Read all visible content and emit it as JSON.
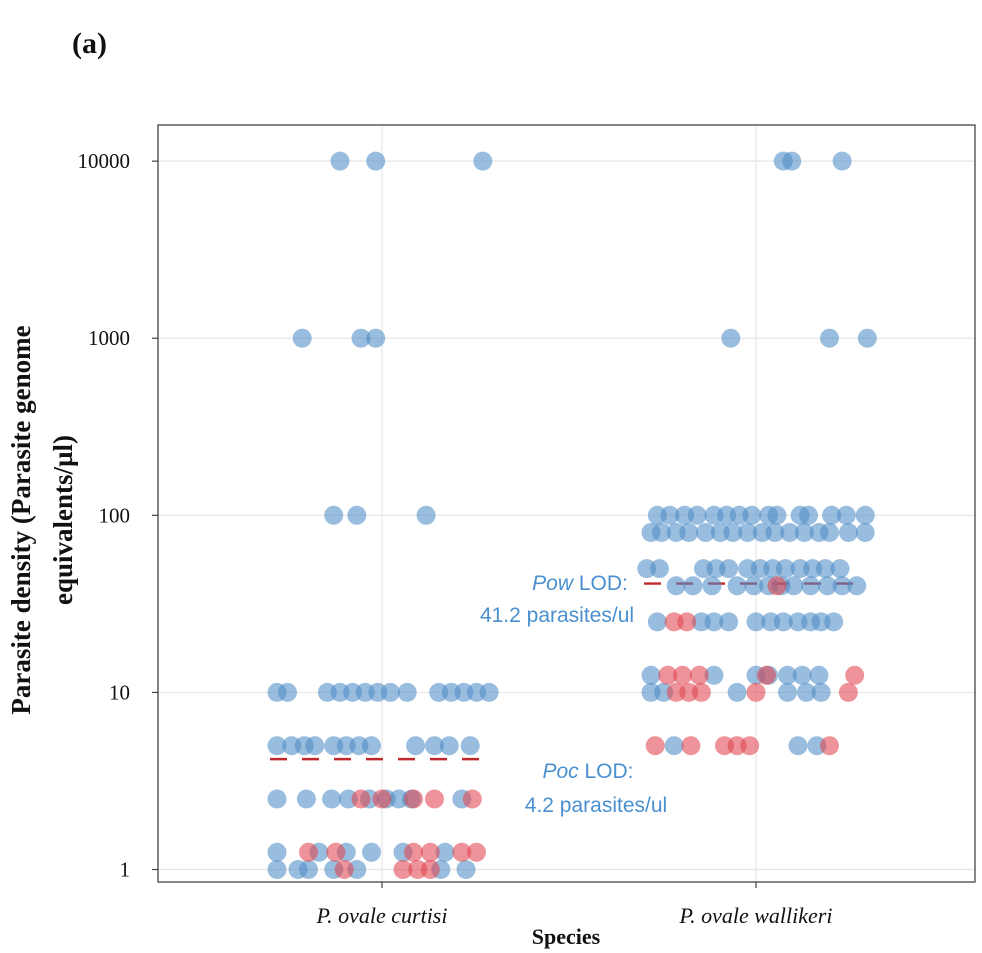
{
  "panel_label": "(a)",
  "chart_data": {
    "type": "scatter",
    "title": "",
    "xlabel": "Species",
    "ylabel_line1": "Parasite density  (Parasite genome",
    "ylabel_line2": "equivalents/µl)",
    "y_scale": "log10",
    "ylim": [
      0.85,
      16000
    ],
    "y_ticks": [
      1,
      10,
      100,
      1000,
      10000
    ],
    "y_tick_labels": [
      "1",
      "10",
      "100",
      "1000",
      "10000"
    ],
    "categories": [
      "P. ovale curtisi",
      "P. ovale wallikeri"
    ],
    "grid": true,
    "colors": {
      "blue": "#4f8ec6",
      "red": "#e0454f",
      "lod_line": "#c0282c",
      "annotation": "#4a90d0"
    },
    "series": [
      {
        "color": "blue",
        "points": [
          {
            "category": 0,
            "jitter": -0.2,
            "y": 10000
          },
          {
            "category": 0,
            "jitter": -0.03,
            "y": 10000
          },
          {
            "category": 0,
            "jitter": 0.48,
            "y": 10000
          },
          {
            "category": 0,
            "jitter": -0.38,
            "y": 1000
          },
          {
            "category": 0,
            "jitter": -0.1,
            "y": 1000
          },
          {
            "category": 0,
            "jitter": -0.03,
            "y": 1000
          },
          {
            "category": 0,
            "jitter": -0.23,
            "y": 100
          },
          {
            "category": 0,
            "jitter": -0.12,
            "y": 100
          },
          {
            "category": 0,
            "jitter": 0.21,
            "y": 100
          },
          {
            "category": 0,
            "jitter": -0.5,
            "y": 10
          },
          {
            "category": 0,
            "jitter": -0.45,
            "y": 10
          },
          {
            "category": 0,
            "jitter": -0.26,
            "y": 10
          },
          {
            "category": 0,
            "jitter": -0.2,
            "y": 10
          },
          {
            "category": 0,
            "jitter": -0.14,
            "y": 10
          },
          {
            "category": 0,
            "jitter": -0.08,
            "y": 10
          },
          {
            "category": 0,
            "jitter": -0.02,
            "y": 10
          },
          {
            "category": 0,
            "jitter": 0.04,
            "y": 10
          },
          {
            "category": 0,
            "jitter": 0.12,
            "y": 10
          },
          {
            "category": 0,
            "jitter": 0.27,
            "y": 10
          },
          {
            "category": 0,
            "jitter": 0.33,
            "y": 10
          },
          {
            "category": 0,
            "jitter": 0.39,
            "y": 10
          },
          {
            "category": 0,
            "jitter": 0.45,
            "y": 10
          },
          {
            "category": 0,
            "jitter": 0.51,
            "y": 10
          },
          {
            "category": 0,
            "jitter": -0.5,
            "y": 5
          },
          {
            "category": 0,
            "jitter": -0.43,
            "y": 5
          },
          {
            "category": 0,
            "jitter": -0.37,
            "y": 5
          },
          {
            "category": 0,
            "jitter": -0.32,
            "y": 5
          },
          {
            "category": 0,
            "jitter": -0.23,
            "y": 5
          },
          {
            "category": 0,
            "jitter": -0.17,
            "y": 5
          },
          {
            "category": 0,
            "jitter": -0.11,
            "y": 5
          },
          {
            "category": 0,
            "jitter": -0.05,
            "y": 5
          },
          {
            "category": 0,
            "jitter": 0.16,
            "y": 5
          },
          {
            "category": 0,
            "jitter": 0.25,
            "y": 5
          },
          {
            "category": 0,
            "jitter": 0.32,
            "y": 5
          },
          {
            "category": 0,
            "jitter": 0.42,
            "y": 5
          },
          {
            "category": 0,
            "jitter": -0.5,
            "y": 2.5
          },
          {
            "category": 0,
            "jitter": -0.36,
            "y": 2.5
          },
          {
            "category": 0,
            "jitter": -0.24,
            "y": 2.5
          },
          {
            "category": 0,
            "jitter": -0.16,
            "y": 2.5
          },
          {
            "category": 0,
            "jitter": -0.06,
            "y": 2.5
          },
          {
            "category": 0,
            "jitter": 0.02,
            "y": 2.5
          },
          {
            "category": 0,
            "jitter": 0.08,
            "y": 2.5
          },
          {
            "category": 0,
            "jitter": 0.14,
            "y": 2.5
          },
          {
            "category": 0,
            "jitter": 0.38,
            "y": 2.5
          },
          {
            "category": 0,
            "jitter": -0.5,
            "y": 1.25
          },
          {
            "category": 0,
            "jitter": -0.3,
            "y": 1.25
          },
          {
            "category": 0,
            "jitter": -0.17,
            "y": 1.25
          },
          {
            "category": 0,
            "jitter": -0.05,
            "y": 1.25
          },
          {
            "category": 0,
            "jitter": 0.1,
            "y": 1.25
          },
          {
            "category": 0,
            "jitter": 0.3,
            "y": 1.25
          },
          {
            "category": 0,
            "jitter": -0.5,
            "y": 1
          },
          {
            "category": 0,
            "jitter": -0.4,
            "y": 1
          },
          {
            "category": 0,
            "jitter": -0.35,
            "y": 1
          },
          {
            "category": 0,
            "jitter": -0.23,
            "y": 1
          },
          {
            "category": 0,
            "jitter": -0.12,
            "y": 1
          },
          {
            "category": 0,
            "jitter": 0.28,
            "y": 1
          },
          {
            "category": 0,
            "jitter": 0.4,
            "y": 1
          },
          {
            "category": 1,
            "jitter": 0.13,
            "y": 10000
          },
          {
            "category": 1,
            "jitter": 0.17,
            "y": 10000
          },
          {
            "category": 1,
            "jitter": 0.41,
            "y": 10000
          },
          {
            "category": 1,
            "jitter": -0.12,
            "y": 1000
          },
          {
            "category": 1,
            "jitter": 0.35,
            "y": 1000
          },
          {
            "category": 1,
            "jitter": 0.53,
            "y": 1000
          },
          {
            "category": 1,
            "jitter": -0.47,
            "y": 100
          },
          {
            "category": 1,
            "jitter": -0.41,
            "y": 100
          },
          {
            "category": 1,
            "jitter": -0.34,
            "y": 100
          },
          {
            "category": 1,
            "jitter": -0.28,
            "y": 100
          },
          {
            "category": 1,
            "jitter": -0.2,
            "y": 100
          },
          {
            "category": 1,
            "jitter": -0.14,
            "y": 100
          },
          {
            "category": 1,
            "jitter": -0.08,
            "y": 100
          },
          {
            "category": 1,
            "jitter": -0.02,
            "y": 100
          },
          {
            "category": 1,
            "jitter": 0.06,
            "y": 100
          },
          {
            "category": 1,
            "jitter": 0.1,
            "y": 100
          },
          {
            "category": 1,
            "jitter": 0.21,
            "y": 100
          },
          {
            "category": 1,
            "jitter": 0.25,
            "y": 100
          },
          {
            "category": 1,
            "jitter": 0.36,
            "y": 100
          },
          {
            "category": 1,
            "jitter": 0.43,
            "y": 100
          },
          {
            "category": 1,
            "jitter": 0.52,
            "y": 100
          },
          {
            "category": 1,
            "jitter": -0.5,
            "y": 80
          },
          {
            "category": 1,
            "jitter": -0.45,
            "y": 80
          },
          {
            "category": 1,
            "jitter": -0.38,
            "y": 80
          },
          {
            "category": 1,
            "jitter": -0.32,
            "y": 80
          },
          {
            "category": 1,
            "jitter": -0.24,
            "y": 80
          },
          {
            "category": 1,
            "jitter": -0.17,
            "y": 80
          },
          {
            "category": 1,
            "jitter": -0.11,
            "y": 80
          },
          {
            "category": 1,
            "jitter": -0.04,
            "y": 80
          },
          {
            "category": 1,
            "jitter": 0.03,
            "y": 80
          },
          {
            "category": 1,
            "jitter": 0.09,
            "y": 80
          },
          {
            "category": 1,
            "jitter": 0.16,
            "y": 80
          },
          {
            "category": 1,
            "jitter": 0.23,
            "y": 80
          },
          {
            "category": 1,
            "jitter": 0.3,
            "y": 80
          },
          {
            "category": 1,
            "jitter": 0.35,
            "y": 80
          },
          {
            "category": 1,
            "jitter": 0.44,
            "y": 80
          },
          {
            "category": 1,
            "jitter": 0.52,
            "y": 80
          },
          {
            "category": 1,
            "jitter": -0.52,
            "y": 50
          },
          {
            "category": 1,
            "jitter": -0.46,
            "y": 50
          },
          {
            "category": 1,
            "jitter": -0.25,
            "y": 50
          },
          {
            "category": 1,
            "jitter": -0.19,
            "y": 50
          },
          {
            "category": 1,
            "jitter": -0.13,
            "y": 50
          },
          {
            "category": 1,
            "jitter": -0.04,
            "y": 50
          },
          {
            "category": 1,
            "jitter": 0.02,
            "y": 50
          },
          {
            "category": 1,
            "jitter": 0.08,
            "y": 50
          },
          {
            "category": 1,
            "jitter": 0.14,
            "y": 50
          },
          {
            "category": 1,
            "jitter": 0.21,
            "y": 50
          },
          {
            "category": 1,
            "jitter": 0.27,
            "y": 50
          },
          {
            "category": 1,
            "jitter": 0.33,
            "y": 50
          },
          {
            "category": 1,
            "jitter": 0.4,
            "y": 50
          },
          {
            "category": 1,
            "jitter": -0.38,
            "y": 40
          },
          {
            "category": 1,
            "jitter": -0.3,
            "y": 40
          },
          {
            "category": 1,
            "jitter": -0.21,
            "y": 40
          },
          {
            "category": 1,
            "jitter": -0.09,
            "y": 40
          },
          {
            "category": 1,
            "jitter": -0.01,
            "y": 40
          },
          {
            "category": 1,
            "jitter": 0.06,
            "y": 40
          },
          {
            "category": 1,
            "jitter": 0.12,
            "y": 40
          },
          {
            "category": 1,
            "jitter": 0.18,
            "y": 40
          },
          {
            "category": 1,
            "jitter": 0.26,
            "y": 40
          },
          {
            "category": 1,
            "jitter": 0.34,
            "y": 40
          },
          {
            "category": 1,
            "jitter": 0.41,
            "y": 40
          },
          {
            "category": 1,
            "jitter": 0.48,
            "y": 40
          },
          {
            "category": 1,
            "jitter": -0.47,
            "y": 25
          },
          {
            "category": 1,
            "jitter": -0.26,
            "y": 25
          },
          {
            "category": 1,
            "jitter": -0.2,
            "y": 25
          },
          {
            "category": 1,
            "jitter": -0.13,
            "y": 25
          },
          {
            "category": 1,
            "jitter": 0.0,
            "y": 25
          },
          {
            "category": 1,
            "jitter": 0.07,
            "y": 25
          },
          {
            "category": 1,
            "jitter": 0.13,
            "y": 25
          },
          {
            "category": 1,
            "jitter": 0.2,
            "y": 25
          },
          {
            "category": 1,
            "jitter": 0.26,
            "y": 25
          },
          {
            "category": 1,
            "jitter": 0.31,
            "y": 25
          },
          {
            "category": 1,
            "jitter": 0.37,
            "y": 25
          },
          {
            "category": 1,
            "jitter": -0.5,
            "y": 12.5
          },
          {
            "category": 1,
            "jitter": -0.2,
            "y": 12.5
          },
          {
            "category": 1,
            "jitter": 0.0,
            "y": 12.5
          },
          {
            "category": 1,
            "jitter": 0.06,
            "y": 12.5
          },
          {
            "category": 1,
            "jitter": 0.15,
            "y": 12.5
          },
          {
            "category": 1,
            "jitter": 0.22,
            "y": 12.5
          },
          {
            "category": 1,
            "jitter": 0.3,
            "y": 12.5
          },
          {
            "category": 1,
            "jitter": -0.5,
            "y": 10
          },
          {
            "category": 1,
            "jitter": -0.44,
            "y": 10
          },
          {
            "category": 1,
            "jitter": -0.09,
            "y": 10
          },
          {
            "category": 1,
            "jitter": 0.15,
            "y": 10
          },
          {
            "category": 1,
            "jitter": 0.24,
            "y": 10
          },
          {
            "category": 1,
            "jitter": 0.31,
            "y": 10
          },
          {
            "category": 1,
            "jitter": -0.39,
            "y": 5
          },
          {
            "category": 1,
            "jitter": 0.2,
            "y": 5
          },
          {
            "category": 1,
            "jitter": 0.29,
            "y": 5
          }
        ]
      },
      {
        "color": "red",
        "points": [
          {
            "category": 0,
            "jitter": -0.1,
            "y": 2.5
          },
          {
            "category": 0,
            "jitter": 0.0,
            "y": 2.5
          },
          {
            "category": 0,
            "jitter": 0.15,
            "y": 2.5
          },
          {
            "category": 0,
            "jitter": 0.25,
            "y": 2.5
          },
          {
            "category": 0,
            "jitter": 0.43,
            "y": 2.5
          },
          {
            "category": 0,
            "jitter": -0.35,
            "y": 1.25
          },
          {
            "category": 0,
            "jitter": -0.22,
            "y": 1.25
          },
          {
            "category": 0,
            "jitter": 0.15,
            "y": 1.25
          },
          {
            "category": 0,
            "jitter": 0.23,
            "y": 1.25
          },
          {
            "category": 0,
            "jitter": 0.38,
            "y": 1.25
          },
          {
            "category": 0,
            "jitter": 0.45,
            "y": 1.25
          },
          {
            "category": 0,
            "jitter": -0.18,
            "y": 1
          },
          {
            "category": 0,
            "jitter": 0.1,
            "y": 1
          },
          {
            "category": 0,
            "jitter": 0.17,
            "y": 1
          },
          {
            "category": 0,
            "jitter": 0.23,
            "y": 1
          },
          {
            "category": 1,
            "jitter": 0.1,
            "y": 40
          },
          {
            "category": 1,
            "jitter": -0.39,
            "y": 25
          },
          {
            "category": 1,
            "jitter": -0.33,
            "y": 25
          },
          {
            "category": 1,
            "jitter": -0.42,
            "y": 12.5
          },
          {
            "category": 1,
            "jitter": -0.35,
            "y": 12.5
          },
          {
            "category": 1,
            "jitter": -0.27,
            "y": 12.5
          },
          {
            "category": 1,
            "jitter": 0.05,
            "y": 12.5
          },
          {
            "category": 1,
            "jitter": 0.47,
            "y": 12.5
          },
          {
            "category": 1,
            "jitter": -0.38,
            "y": 10
          },
          {
            "category": 1,
            "jitter": -0.32,
            "y": 10
          },
          {
            "category": 1,
            "jitter": -0.26,
            "y": 10
          },
          {
            "category": 1,
            "jitter": 0.0,
            "y": 10
          },
          {
            "category": 1,
            "jitter": 0.44,
            "y": 10
          },
          {
            "category": 1,
            "jitter": -0.48,
            "y": 5
          },
          {
            "category": 1,
            "jitter": -0.31,
            "y": 5
          },
          {
            "category": 1,
            "jitter": -0.15,
            "y": 5
          },
          {
            "category": 1,
            "jitter": -0.09,
            "y": 5
          },
          {
            "category": 1,
            "jitter": -0.03,
            "y": 5
          },
          {
            "category": 1,
            "jitter": 0.35,
            "y": 5
          }
        ]
      }
    ],
    "lod_lines": [
      {
        "category": 0,
        "y": 4.2
      },
      {
        "category": 1,
        "y": 41.2
      }
    ],
    "annotations": [
      {
        "italic": "Pow",
        "rest": " LOD:",
        "line2": "41.2 parasites/ul"
      },
      {
        "italic": "Poc",
        "rest": " LOD:",
        "line2": "4.2 parasites/ul"
      }
    ]
  }
}
